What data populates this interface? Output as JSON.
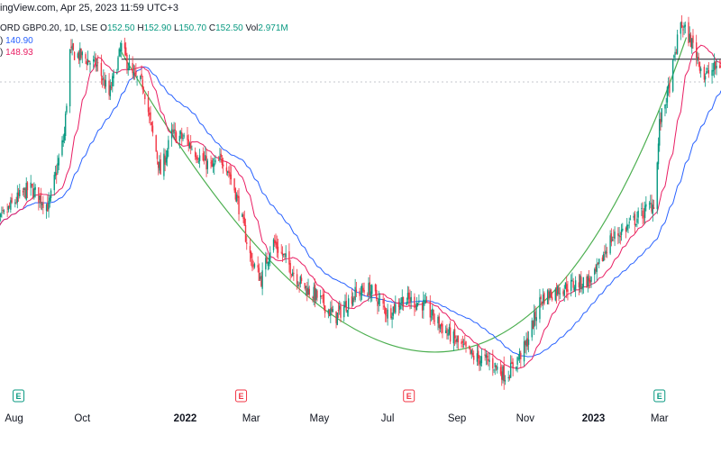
{
  "header": {
    "source_text": "ingView.com, Apr 25, 2023 11:59 UTC+3",
    "symbol_text": "ORD GBP0.20, 1D, LSE",
    "open_label": "O",
    "open_value": "152.50",
    "high_label": "H",
    "high_value": "152.90",
    "low_label": "L",
    "low_value": "150.70",
    "close_label": "C",
    "close_value": "152.50",
    "vol_label": "Vol",
    "vol_value": "2.971M"
  },
  "indicators": [
    {
      "prefix": ")",
      "value": "140.90",
      "color": "#2962ff"
    },
    {
      "prefix": ")",
      "value": "148.93",
      "color": "#e91e63"
    }
  ],
  "colors": {
    "up": "#089981",
    "down": "#f23645",
    "ma_fast": "#e91e63",
    "ma_slow": "#2962ff",
    "cup_curve": "#4caf50",
    "resistance": "#131722",
    "earnings_badge": "#089981",
    "earnings_badge_neg": "#f23645"
  },
  "chart_data": {
    "type": "candlestick",
    "x_axis_labels": [
      "Aug",
      "Oct",
      "2022",
      "Mar",
      "May",
      "Jul",
      "Sep",
      "Nov",
      "2023",
      "Mar"
    ],
    "x_axis_bold": [
      "2022",
      "2023"
    ],
    "x_axis_dates": [
      "2021-08-01",
      "2021-10-01",
      "2022-01-01",
      "2022-03-01",
      "2022-05-01",
      "2022-07-01",
      "2022-09-01",
      "2022-11-01",
      "2023-01-01",
      "2023-03-01"
    ],
    "x_range": [
      "2021-07-13",
      "2023-04-25"
    ],
    "y_range": [
      82,
      162
    ],
    "price_path": [
      [
        "2021-07-13",
        118
      ],
      [
        "2021-08-01",
        124
      ],
      [
        "2021-08-15",
        127
      ],
      [
        "2021-09-01",
        123
      ],
      [
        "2021-09-15",
        138
      ],
      [
        "2021-09-20",
        155
      ],
      [
        "2021-10-01",
        154
      ],
      [
        "2021-10-15",
        152
      ],
      [
        "2021-10-25",
        146
      ],
      [
        "2021-11-05",
        156
      ],
      [
        "2021-11-15",
        150
      ],
      [
        "2021-11-25",
        148
      ],
      [
        "2021-12-01",
        140
      ],
      [
        "2021-12-10",
        130
      ],
      [
        "2021-12-20",
        138
      ],
      [
        "2022-01-01",
        137
      ],
      [
        "2022-01-15",
        133
      ],
      [
        "2022-01-25",
        131
      ],
      [
        "2022-02-05",
        133
      ],
      [
        "2022-02-15",
        126
      ],
      [
        "2022-03-01",
        112
      ],
      [
        "2022-03-10",
        108
      ],
      [
        "2022-03-20",
        116
      ],
      [
        "2022-04-01",
        112
      ],
      [
        "2022-04-15",
        107
      ],
      [
        "2022-05-01",
        104
      ],
      [
        "2022-05-15",
        100
      ],
      [
        "2022-06-01",
        105
      ],
      [
        "2022-06-15",
        106
      ],
      [
        "2022-07-01",
        101
      ],
      [
        "2022-07-15",
        104
      ],
      [
        "2022-08-01",
        103
      ],
      [
        "2022-08-15",
        99
      ],
      [
        "2022-09-01",
        95
      ],
      [
        "2022-09-15",
        92
      ],
      [
        "2022-10-01",
        91
      ],
      [
        "2022-10-15",
        88
      ],
      [
        "2022-11-01",
        94
      ],
      [
        "2022-11-15",
        104
      ],
      [
        "2022-12-01",
        106
      ],
      [
        "2022-12-15",
        107
      ],
      [
        "2023-01-01",
        108
      ],
      [
        "2023-01-15",
        116
      ],
      [
        "2023-02-01",
        119
      ],
      [
        "2023-02-15",
        122
      ],
      [
        "2023-02-25",
        124
      ],
      [
        "2023-03-01",
        140
      ],
      [
        "2023-03-10",
        148
      ],
      [
        "2023-03-20",
        161
      ],
      [
        "2023-04-01",
        156
      ],
      [
        "2023-04-10",
        150
      ],
      [
        "2023-04-25",
        152.5
      ]
    ],
    "ma_fast_label_value": 148.93,
    "ma_slow_label_value": 140.9,
    "resistance_level": 153.5,
    "resistance_start": "2021-11-05",
    "cup_curve": {
      "start": [
        "2021-11-05",
        155
      ],
      "bottom": [
        "2022-08-15",
        93
      ],
      "end": [
        "2023-03-25",
        158
      ]
    },
    "earnings_dates": [
      "2021-08-05",
      "2022-02-20",
      "2022-07-20",
      "2023-03-01"
    ],
    "earnings_negative": [
      false,
      true,
      true,
      false
    ]
  }
}
